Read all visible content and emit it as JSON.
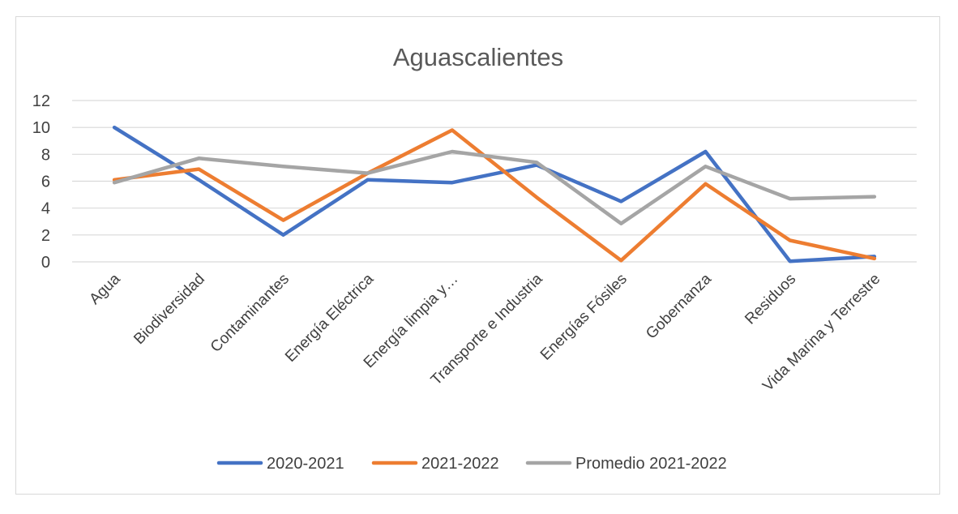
{
  "chart_data": {
    "type": "line",
    "title": "Aguascalientes",
    "xlabel": "",
    "ylabel": "",
    "ylim": [
      0,
      12
    ],
    "yticks": [
      0,
      2,
      4,
      6,
      8,
      10,
      12
    ],
    "grid": true,
    "legend_position": "bottom",
    "categories": [
      "Agua",
      "Biodiversidad",
      "Contaminantes",
      "Energía Eléctrica",
      "Energía limpia y…",
      "Transporte e Industria",
      "Energías Fósiles",
      "Gobernanza",
      "Residuos",
      "Vida Marina y Terrestre"
    ],
    "series": [
      {
        "name": "2020-2021",
        "color": "#4472c4",
        "values": [
          10,
          6.1,
          2,
          6.1,
          5.9,
          7.2,
          4.5,
          8.2,
          0.05,
          0.4
        ]
      },
      {
        "name": "2021-2022",
        "color": "#ed7d31",
        "values": [
          6.1,
          6.9,
          3.1,
          6.6,
          9.8,
          4.8,
          0.1,
          5.8,
          1.6,
          0.25
        ]
      },
      {
        "name": "Promedio 2021-2022",
        "color": "#a5a5a5",
        "values": [
          5.9,
          7.7,
          7.1,
          6.6,
          8.2,
          7.4,
          2.85,
          7.1,
          4.7,
          4.85
        ]
      }
    ]
  }
}
